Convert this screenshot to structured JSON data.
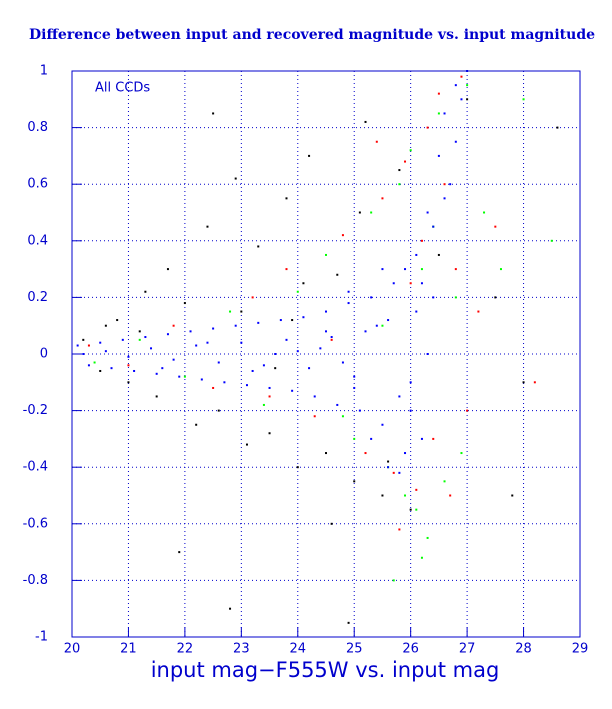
{
  "chart_data": {
    "type": "scatter",
    "title": "Difference between input and recovered magnitude vs. input magnitude",
    "annotation": "All CCDs",
    "x_label": "input mag−F555W vs. input mag",
    "xlim": [
      20,
      29
    ],
    "ylim": [
      -1,
      1
    ],
    "xticks": [
      20,
      21,
      22,
      23,
      24,
      25,
      26,
      27,
      28,
      29
    ],
    "yticks": [
      -1,
      -0.8,
      -0.6,
      -0.4,
      -0.2,
      0,
      0.2,
      0.4,
      0.6,
      0.8,
      1
    ],
    "grid": true,
    "series": [
      {
        "color": "#000000",
        "x": [
          20.2,
          20.5,
          20.8,
          21.0,
          21.3,
          21.5,
          21.7,
          22.0,
          22.2,
          22.4,
          22.6,
          22.9,
          23.1,
          23.3,
          23.5,
          23.8,
          24.0,
          24.2,
          24.5,
          24.7,
          25.0,
          25.2,
          25.5,
          25.8,
          26.0,
          26.5,
          27.0,
          27.5,
          28.0,
          28.6,
          21.2,
          21.9,
          22.5,
          23.0,
          23.6,
          24.1,
          24.6,
          25.1,
          25.6,
          20.6,
          22.8,
          27.8,
          24.9,
          23.9
        ],
        "values": [
          0.05,
          -0.06,
          0.12,
          -0.1,
          0.22,
          -0.15,
          0.3,
          0.18,
          -0.25,
          0.45,
          -0.2,
          0.62,
          -0.32,
          0.38,
          -0.28,
          0.55,
          -0.4,
          0.7,
          -0.35,
          0.28,
          -0.45,
          0.82,
          -0.5,
          0.65,
          -0.55,
          0.35,
          0.9,
          0.2,
          -0.1,
          0.8,
          0.08,
          -0.7,
          0.85,
          0.15,
          -0.05,
          0.25,
          -0.6,
          0.5,
          -0.38,
          0.1,
          -0.9,
          -0.5,
          -0.95,
          0.12
        ]
      },
      {
        "color": "#ff0000",
        "x": [
          20.3,
          21.0,
          21.8,
          22.5,
          23.2,
          23.8,
          24.3,
          24.8,
          25.2,
          25.5,
          25.7,
          25.9,
          26.0,
          26.1,
          26.2,
          26.3,
          26.4,
          26.5,
          26.6,
          26.8,
          27.0,
          27.2,
          27.5,
          28.2,
          25.4,
          24.6,
          23.5,
          26.7,
          25.8,
          26.9
        ],
        "values": [
          0.03,
          -0.04,
          0.1,
          -0.12,
          0.2,
          0.3,
          -0.22,
          0.42,
          -0.35,
          0.55,
          -0.42,
          0.68,
          0.25,
          -0.48,
          0.4,
          0.8,
          -0.3,
          0.92,
          0.6,
          0.3,
          -0.2,
          0.15,
          0.45,
          -0.1,
          0.75,
          0.05,
          -0.15,
          -0.5,
          -0.62,
          0.98
        ]
      },
      {
        "color": "#00ff00",
        "x": [
          20.4,
          21.2,
          22.0,
          22.8,
          23.4,
          24.0,
          24.5,
          25.0,
          25.3,
          25.6,
          25.8,
          25.9,
          26.0,
          26.1,
          26.2,
          26.3,
          26.4,
          26.5,
          26.6,
          26.8,
          27.0,
          27.3,
          27.6,
          28.0,
          28.5,
          26.2,
          25.7,
          25.5,
          26.9,
          24.8
        ],
        "values": [
          -0.03,
          0.05,
          -0.08,
          0.15,
          -0.18,
          0.22,
          0.35,
          -0.3,
          0.5,
          -0.4,
          0.6,
          -0.5,
          0.72,
          -0.55,
          0.3,
          -0.65,
          0.45,
          0.85,
          -0.45,
          0.2,
          0.95,
          0.5,
          0.3,
          0.9,
          0.4,
          -0.72,
          -0.8,
          0.1,
          -0.35,
          -0.22
        ]
      },
      {
        "color": "#0000ff",
        "x": [
          20.1,
          20.3,
          20.5,
          20.7,
          20.9,
          21.1,
          21.3,
          21.5,
          21.7,
          21.9,
          22.1,
          22.3,
          22.5,
          22.7,
          22.9,
          23.1,
          23.3,
          23.5,
          23.7,
          23.9,
          24.1,
          24.3,
          24.5,
          24.7,
          24.9,
          25.1,
          25.3,
          25.5,
          25.7,
          25.9,
          20.2,
          20.6,
          21.0,
          21.4,
          21.8,
          22.2,
          22.6,
          23.0,
          23.4,
          23.8,
          24.2,
          24.6,
          25.0,
          25.4,
          25.8,
          26.1,
          26.2,
          26.3,
          26.4,
          26.5,
          26.6,
          26.7,
          26.8,
          26.9,
          27.0,
          25.6,
          25.9,
          26.0,
          26.1,
          26.3,
          24.4,
          24.8,
          25.2,
          25.6,
          26.0,
          23.6,
          24.0,
          25.0,
          25.5,
          26.2,
          26.4,
          26.6,
          26.8,
          25.8,
          25.3,
          24.9,
          24.5,
          23.2,
          22.4,
          21.6
        ],
        "values": [
          0.03,
          -0.04,
          0.04,
          -0.05,
          0.05,
          -0.06,
          0.06,
          -0.07,
          0.07,
          -0.08,
          0.08,
          -0.09,
          0.09,
          -0.1,
          0.1,
          -0.11,
          0.11,
          -0.12,
          0.12,
          -0.13,
          0.13,
          -0.15,
          0.15,
          -0.18,
          0.18,
          -0.2,
          0.2,
          -0.25,
          0.25,
          -0.35,
          0,
          0.01,
          -0.01,
          0.02,
          -0.02,
          0.03,
          -0.03,
          0.04,
          -0.04,
          0.05,
          -0.05,
          0.06,
          -0.08,
          0.1,
          -0.15,
          0.35,
          -0.3,
          0.5,
          0.2,
          0.7,
          0.85,
          0.6,
          0.95,
          0.9,
          1.0,
          -0.4,
          0.3,
          -0.2,
          0.15,
          0.0,
          0.02,
          -0.03,
          0.08,
          0.12,
          -0.1,
          0,
          0.01,
          -0.12,
          0.3,
          0.25,
          0.45,
          0.55,
          0.75,
          -0.42,
          -0.3,
          0.22,
          0.08,
          -0.06,
          0.04,
          -0.05
        ]
      }
    ]
  }
}
